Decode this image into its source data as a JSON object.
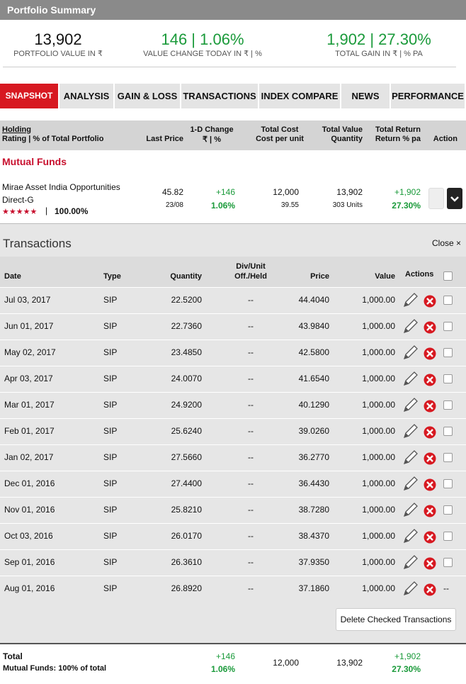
{
  "header": {
    "title": "Portfolio Summary"
  },
  "summary": [
    {
      "value": "13,902",
      "label": "PORTFOLIO VALUE IN ₹"
    },
    {
      "value": "146 | 1.06%",
      "label": "VALUE CHANGE TODAY IN ₹ | %"
    },
    {
      "value": "1,902 | 27.30%",
      "label": "TOTAL GAIN IN ₹ | % PA"
    }
  ],
  "tabs": [
    "SNAPSHOT",
    "ANALYSIS",
    "GAIN & LOSS",
    "TRANSACTIONS",
    "INDEX COMPARE",
    "NEWS",
    "PERFORMANCE"
  ],
  "holdings": {
    "columns": {
      "holding": "Holding",
      "rating": "Rating | % of Total Portfolio",
      "last_price": "Last Price",
      "change": "1-D Change",
      "change_sub": "₹ | %",
      "cost": "Total Cost",
      "cost_sub": "Cost per unit",
      "value": "Total Value",
      "value_sub": "Quantity",
      "return": "Total Return",
      "return_sub": "Return % pa",
      "action": "Action"
    },
    "section": "Mutual Funds",
    "fund": {
      "name": "Mirae Asset India Opportunities Direct-G",
      "rating": "★★★★★",
      "pct": "100.00%",
      "last_price": "45.82",
      "date": "23/08",
      "change": "+146",
      "change_pct": "1.06%",
      "cost": "12,000",
      "cost_per_unit": "39.55",
      "value": "13,902",
      "quantity": "303 Units",
      "return": "+1,902",
      "return_pct": "27.30%"
    }
  },
  "transactions": {
    "title": "Transactions",
    "close": "Close ×",
    "columns": {
      "date": "Date",
      "type": "Type",
      "quantity": "Quantity",
      "div": "Div/Unit Off./Held",
      "price": "Price",
      "value": "Value",
      "actions": "Actions"
    },
    "rows": [
      {
        "date": "Jul 03, 2017",
        "type": "SIP",
        "quantity": "22.5200",
        "div": "--",
        "price": "44.4040",
        "value": "1,000.00"
      },
      {
        "date": "Jun 01, 2017",
        "type": "SIP",
        "quantity": "22.7360",
        "div": "--",
        "price": "43.9840",
        "value": "1,000.00"
      },
      {
        "date": "May 02, 2017",
        "type": "SIP",
        "quantity": "23.4850",
        "div": "--",
        "price": "42.5800",
        "value": "1,000.00"
      },
      {
        "date": "Apr 03, 2017",
        "type": "SIP",
        "quantity": "24.0070",
        "div": "--",
        "price": "41.6540",
        "value": "1,000.00"
      },
      {
        "date": "Mar 01, 2017",
        "type": "SIP",
        "quantity": "24.9200",
        "div": "--",
        "price": "40.1290",
        "value": "1,000.00"
      },
      {
        "date": "Feb 01, 2017",
        "type": "SIP",
        "quantity": "25.6240",
        "div": "--",
        "price": "39.0260",
        "value": "1,000.00"
      },
      {
        "date": "Jan 02, 2017",
        "type": "SIP",
        "quantity": "27.5660",
        "div": "--",
        "price": "36.2770",
        "value": "1,000.00"
      },
      {
        "date": "Dec 01, 2016",
        "type": "SIP",
        "quantity": "27.4400",
        "div": "--",
        "price": "36.4430",
        "value": "1,000.00"
      },
      {
        "date": "Nov 01, 2016",
        "type": "SIP",
        "quantity": "25.8210",
        "div": "--",
        "price": "38.7280",
        "value": "1,000.00"
      },
      {
        "date": "Oct 03, 2016",
        "type": "SIP",
        "quantity": "26.0170",
        "div": "--",
        "price": "38.4370",
        "value": "1,000.00"
      },
      {
        "date": "Sep 01, 2016",
        "type": "SIP",
        "quantity": "26.3610",
        "div": "--",
        "price": "37.9350",
        "value": "1,000.00"
      },
      {
        "date": "Aug 01, 2016",
        "type": "SIP",
        "quantity": "26.8920",
        "div": "--",
        "price": "37.1860",
        "value": "1,000.00",
        "select": "--"
      }
    ],
    "button": "Delete Checked Transactions"
  },
  "total": {
    "label": "Total",
    "sub": "Mutual Funds: 100% of total",
    "change": "+146",
    "change_pct": "1.06%",
    "cost": "12,000",
    "value": "13,902",
    "return": "+1,902",
    "return_pct": "27.30%"
  }
}
